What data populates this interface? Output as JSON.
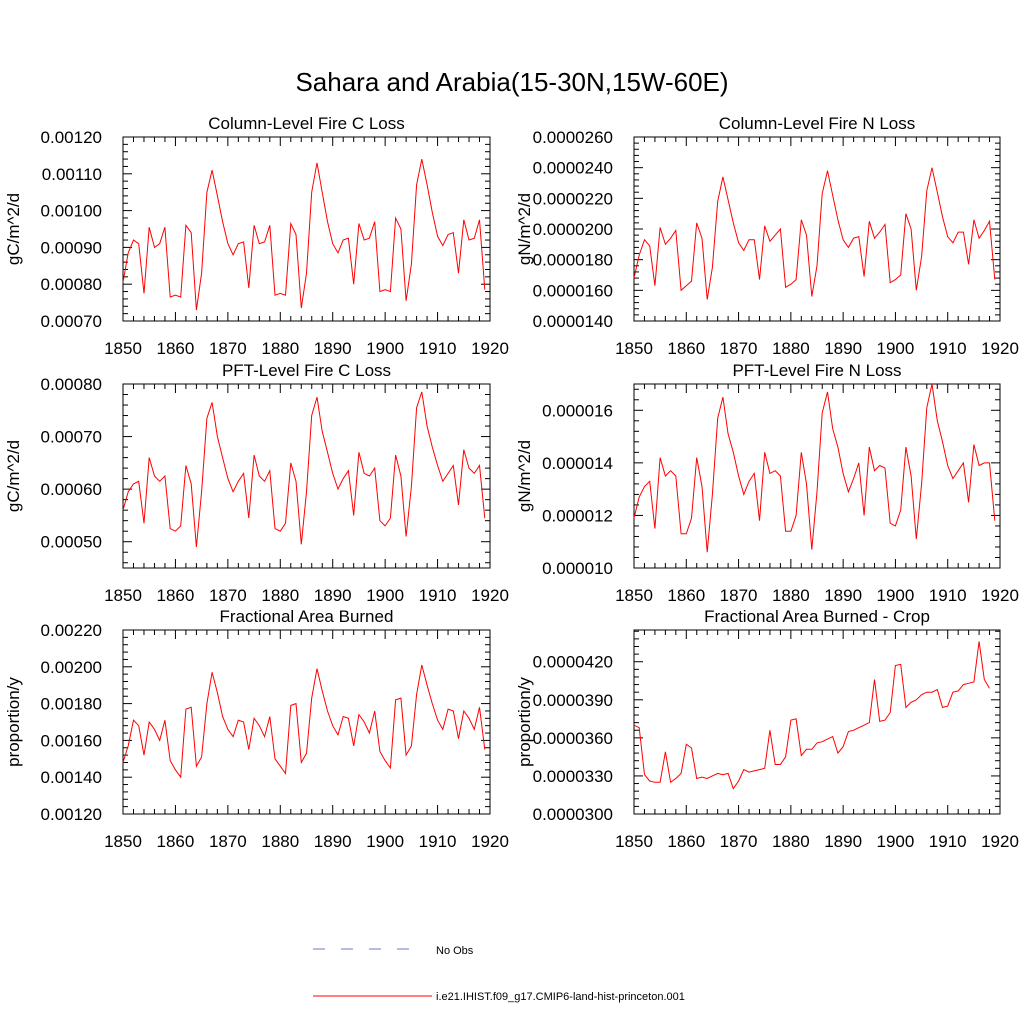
{
  "figure": {
    "title": "Sahara and Arabia(15-30N,15W-60E)"
  },
  "legend": {
    "obs_label": "No Obs",
    "obs_color": "#6a78c8",
    "model_label": "i.e21.IHIST.f09_g17.CMIP6-land-hist-princeton.001",
    "model_color": "#ff0000"
  },
  "chart_data": [
    {
      "type": "line",
      "title": "Column-Level Fire C Loss",
      "ylabel": "gC/m^2/d",
      "xlim": [
        1850,
        1920
      ],
      "xticks": [
        "1850",
        "1860",
        "1870",
        "1880",
        "1890",
        "1900",
        "1910",
        "1920"
      ],
      "ylim": [
        0.0007,
        0.0012
      ],
      "yticks": [
        "0.00070",
        "0.00080",
        "0.00090",
        "0.00100",
        "0.00110",
        "0.00120"
      ],
      "x_start": 1850,
      "series": [
        {
          "color": "#ff0000",
          "values": [
            0.000805,
            0.000885,
            0.00092,
            0.00091,
            0.000775,
            0.000955,
            0.0009,
            0.00091,
            0.000955,
            0.000765,
            0.00077,
            0.000765,
            0.00096,
            0.00094,
            0.00073,
            0.00083,
            0.00105,
            0.00111,
            0.00104,
            0.00097,
            0.00091,
            0.00088,
            0.00091,
            0.000915,
            0.00079,
            0.00096,
            0.00091,
            0.000915,
            0.00096,
            0.00077,
            0.000775,
            0.00077,
            0.000965,
            0.000935,
            0.000735,
            0.00083,
            0.00105,
            0.00113,
            0.00105,
            0.00097,
            0.00091,
            0.000885,
            0.00092,
            0.000925,
            0.0008,
            0.000965,
            0.00092,
            0.000925,
            0.00097,
            0.00078,
            0.000785,
            0.00078,
            0.00098,
            0.00095,
            0.000755,
            0.000855,
            0.00107,
            0.00114,
            0.00107,
            0.000995,
            0.00093,
            0.000905,
            0.000935,
            0.00094,
            0.00083,
            0.000975,
            0.00092,
            0.000925,
            0.000975,
            0.000785
          ]
        }
      ]
    },
    {
      "type": "line",
      "title": "Column-Level Fire N Loss",
      "ylabel": "gN/m^2/d",
      "xlim": [
        1850,
        1920
      ],
      "xticks": [
        "1850",
        "1860",
        "1870",
        "1880",
        "1890",
        "1900",
        "1910",
        "1920"
      ],
      "ylim": [
        1.4e-05,
        2.6e-05
      ],
      "yticks": [
        "0.0000140",
        "0.0000160",
        "0.0000180",
        "0.0000200",
        "0.0000220",
        "0.0000240",
        "0.0000260"
      ],
      "x_start": 1850,
      "series": [
        {
          "color": "#ff0000",
          "values": [
            1.68e-05,
            1.83e-05,
            1.93e-05,
            1.89e-05,
            1.63e-05,
            2.01e-05,
            1.9e-05,
            1.94e-05,
            1.99e-05,
            1.6e-05,
            1.63e-05,
            1.66e-05,
            2.04e-05,
            1.94e-05,
            1.54e-05,
            1.75e-05,
            2.18e-05,
            2.34e-05,
            2.19e-05,
            2.04e-05,
            1.91e-05,
            1.86e-05,
            1.93e-05,
            1.93e-05,
            1.67e-05,
            2.02e-05,
            1.92e-05,
            1.96e-05,
            2e-05,
            1.62e-05,
            1.64e-05,
            1.67e-05,
            2.06e-05,
            1.96e-05,
            1.56e-05,
            1.76e-05,
            2.23e-05,
            2.38e-05,
            2.22e-05,
            2.06e-05,
            1.93e-05,
            1.88e-05,
            1.94e-05,
            1.95e-05,
            1.69e-05,
            2.05e-05,
            1.94e-05,
            1.98e-05,
            2.03e-05,
            1.65e-05,
            1.67e-05,
            1.7e-05,
            2.1e-05,
            2e-05,
            1.6e-05,
            1.82e-05,
            2.25e-05,
            2.4e-05,
            2.24e-05,
            2.08e-05,
            1.95e-05,
            1.91e-05,
            1.98e-05,
            1.98e-05,
            1.77e-05,
            2.06e-05,
            1.94e-05,
            1.99e-05,
            2.05e-05,
            1.67e-05
          ]
        }
      ]
    },
    {
      "type": "line",
      "title": "PFT-Level Fire C Loss",
      "ylabel": "gC/m^2/d",
      "xlim": [
        1850,
        1920
      ],
      "xticks": [
        "1850",
        "1860",
        "1870",
        "1880",
        "1890",
        "1900",
        "1910",
        "1920"
      ],
      "ylim": [
        0.00045,
        0.0008
      ],
      "yticks": [
        "0.00050",
        "0.00060",
        "0.00070",
        "0.00080"
      ],
      "x_start": 1850,
      "series": [
        {
          "color": "#ff0000",
          "values": [
            0.00056,
            0.000595,
            0.00061,
            0.000615,
            0.000535,
            0.00066,
            0.000625,
            0.000615,
            0.000625,
            0.000525,
            0.00052,
            0.00053,
            0.000645,
            0.00061,
            0.00049,
            0.000595,
            0.000735,
            0.000765,
            0.0007,
            0.00066,
            0.00062,
            0.000595,
            0.000615,
            0.00063,
            0.000545,
            0.000665,
            0.000625,
            0.000615,
            0.000635,
            0.000525,
            0.00052,
            0.000535,
            0.00065,
            0.000615,
            0.000495,
            0.000595,
            0.00074,
            0.000775,
            0.00071,
            0.00067,
            0.00063,
            0.0006,
            0.00062,
            0.000635,
            0.00055,
            0.00067,
            0.00063,
            0.000625,
            0.00064,
            0.00054,
            0.00053,
            0.000545,
            0.000665,
            0.000625,
            0.00051,
            0.000605,
            0.000755,
            0.000785,
            0.00072,
            0.00068,
            0.000645,
            0.000615,
            0.00063,
            0.000645,
            0.00057,
            0.000675,
            0.00064,
            0.00063,
            0.000645,
            0.000545
          ]
        }
      ]
    },
    {
      "type": "line",
      "title": "PFT-Level Fire N Loss",
      "ylabel": "gN/m^2/d",
      "xlim": [
        1850,
        1920
      ],
      "xticks": [
        "1850",
        "1860",
        "1870",
        "1880",
        "1890",
        "1900",
        "1910",
        "1920"
      ],
      "ylim": [
        1e-05,
        1.7e-05
      ],
      "yticks": [
        "0.000010",
        "0.000012",
        "0.000014",
        "0.000016"
      ],
      "x_start": 1850,
      "series": [
        {
          "color": "#ff0000",
          "values": [
            1.19e-05,
            1.27e-05,
            1.31e-05,
            1.33e-05,
            1.15e-05,
            1.42e-05,
            1.35e-05,
            1.37e-05,
            1.35e-05,
            1.13e-05,
            1.13e-05,
            1.19e-05,
            1.42e-05,
            1.31e-05,
            1.06e-05,
            1.28e-05,
            1.57e-05,
            1.65e-05,
            1.51e-05,
            1.44e-05,
            1.35e-05,
            1.28e-05,
            1.33e-05,
            1.36e-05,
            1.18e-05,
            1.44e-05,
            1.36e-05,
            1.37e-05,
            1.35e-05,
            1.14e-05,
            1.14e-05,
            1.2e-05,
            1.44e-05,
            1.32e-05,
            1.07e-05,
            1.29e-05,
            1.59e-05,
            1.67e-05,
            1.53e-05,
            1.46e-05,
            1.36e-05,
            1.29e-05,
            1.34e-05,
            1.4e-05,
            1.2e-05,
            1.46e-05,
            1.37e-05,
            1.39e-05,
            1.38e-05,
            1.17e-05,
            1.16e-05,
            1.22e-05,
            1.46e-05,
            1.35e-05,
            1.11e-05,
            1.32e-05,
            1.61e-05,
            1.7e-05,
            1.56e-05,
            1.48e-05,
            1.39e-05,
            1.34e-05,
            1.37e-05,
            1.4e-05,
            1.25e-05,
            1.47e-05,
            1.39e-05,
            1.4e-05,
            1.4e-05,
            1.18e-05
          ]
        }
      ]
    },
    {
      "type": "line",
      "title": "Fractional Area Burned",
      "ylabel": "proportion/y",
      "xlim": [
        1850,
        1920
      ],
      "xticks": [
        "1850",
        "1860",
        "1870",
        "1880",
        "1890",
        "1900",
        "1910",
        "1920"
      ],
      "ylim": [
        0.0012,
        0.0022
      ],
      "yticks": [
        "0.00120",
        "0.00140",
        "0.00160",
        "0.00180",
        "0.00200",
        "0.00220"
      ],
      "x_start": 1850,
      "series": [
        {
          "color": "#ff0000",
          "values": [
            0.00148,
            0.00157,
            0.00171,
            0.00168,
            0.00152,
            0.0017,
            0.00166,
            0.0016,
            0.00171,
            0.00149,
            0.00144,
            0.0014,
            0.00177,
            0.00178,
            0.00146,
            0.00151,
            0.0018,
            0.00197,
            0.00186,
            0.00173,
            0.00166,
            0.00162,
            0.00171,
            0.0017,
            0.00155,
            0.00172,
            0.00168,
            0.00162,
            0.00173,
            0.0015,
            0.00146,
            0.00142,
            0.00179,
            0.0018,
            0.00148,
            0.00153,
            0.00183,
            0.00199,
            0.00187,
            0.00176,
            0.00168,
            0.00163,
            0.00173,
            0.00172,
            0.00157,
            0.00174,
            0.0017,
            0.00164,
            0.00176,
            0.00154,
            0.00149,
            0.00145,
            0.00182,
            0.00183,
            0.00152,
            0.00157,
            0.00185,
            0.00201,
            0.0019,
            0.0018,
            0.00171,
            0.00166,
            0.00177,
            0.00176,
            0.00161,
            0.00176,
            0.00172,
            0.00166,
            0.00178,
            0.00155
          ]
        }
      ]
    },
    {
      "type": "line",
      "title": "Fractional Area Burned - Crop",
      "ylabel": "proportion/y",
      "xlim": [
        1850,
        1920
      ],
      "xticks": [
        "1850",
        "1860",
        "1870",
        "1880",
        "1890",
        "1900",
        "1910",
        "1920"
      ],
      "ylim": [
        3e-05,
        4.45e-05
      ],
      "yticks": [
        "0.0000300",
        "0.0000330",
        "0.0000360",
        "0.0000390",
        "0.0000420"
      ],
      "x_start": 1850,
      "series": [
        {
          "color": "#ff0000",
          "values": [
            3.7e-05,
            3.68e-05,
            3.31e-05,
            3.26e-05,
            3.25e-05,
            3.25e-05,
            3.49e-05,
            3.25e-05,
            3.28e-05,
            3.32e-05,
            3.55e-05,
            3.52e-05,
            3.28e-05,
            3.29e-05,
            3.28e-05,
            3.3e-05,
            3.32e-05,
            3.31e-05,
            3.32e-05,
            3.2e-05,
            3.26e-05,
            3.35e-05,
            3.33e-05,
            3.34e-05,
            3.35e-05,
            3.36e-05,
            3.66e-05,
            3.39e-05,
            3.39e-05,
            3.45e-05,
            3.74e-05,
            3.75e-05,
            3.46e-05,
            3.51e-05,
            3.51e-05,
            3.56e-05,
            3.57e-05,
            3.59e-05,
            3.61e-05,
            3.48e-05,
            3.53e-05,
            3.65e-05,
            3.66e-05,
            3.68e-05,
            3.7e-05,
            3.72e-05,
            4.06e-05,
            3.73e-05,
            3.74e-05,
            3.8e-05,
            4.17e-05,
            4.18e-05,
            3.84e-05,
            3.88e-05,
            3.9e-05,
            3.94e-05,
            3.96e-05,
            3.96e-05,
            3.98e-05,
            3.84e-05,
            3.85e-05,
            3.96e-05,
            3.97e-05,
            4.02e-05,
            4.03e-05,
            4.04e-05,
            4.36e-05,
            4.06e-05,
            3.99e-05
          ]
        }
      ]
    }
  ]
}
